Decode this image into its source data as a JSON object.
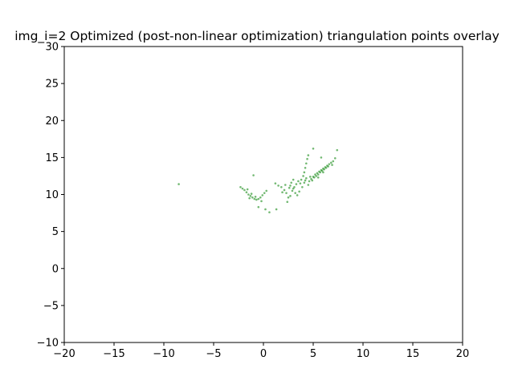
{
  "chart_data": {
    "type": "scatter",
    "title": "img_i=2 Optimized (post-non-linear optimization) triangulation points overlay",
    "xlabel": "",
    "ylabel": "",
    "xlim": [
      -20,
      20
    ],
    "ylim": [
      -10,
      30
    ],
    "xticks": [
      -20,
      -15,
      -10,
      -5,
      0,
      5,
      10,
      15,
      20
    ],
    "yticks": [
      -10,
      -5,
      0,
      5,
      10,
      15,
      20,
      25,
      30
    ],
    "xtick_labels": [
      "−20",
      "−15",
      "−10",
      "−5",
      "0",
      "5",
      "10",
      "15",
      "20"
    ],
    "ytick_labels": [
      "−10",
      "−5",
      "0",
      "5",
      "10",
      "15",
      "20",
      "25",
      "30"
    ],
    "grid": false,
    "legend": "none",
    "point_color": "#008000",
    "series": [
      {
        "points": [
          [
            -8.5,
            11.4
          ],
          [
            -2.3,
            11.0
          ],
          [
            -2.1,
            10.8
          ],
          [
            -1.9,
            10.6
          ],
          [
            -1.7,
            10.3
          ],
          [
            -1.5,
            10.0
          ],
          [
            -1.3,
            9.8
          ],
          [
            -1.1,
            9.6
          ],
          [
            -0.9,
            9.4
          ],
          [
            -0.7,
            9.3
          ],
          [
            -0.5,
            9.4
          ],
          [
            -0.3,
            9.6
          ],
          [
            -0.1,
            9.9
          ],
          [
            0.1,
            10.2
          ],
          [
            0.3,
            10.5
          ],
          [
            -1.2,
            10.1
          ],
          [
            -0.8,
            9.7
          ],
          [
            -1.4,
            9.5
          ],
          [
            -1.0,
            12.6
          ],
          [
            -0.5,
            8.3
          ],
          [
            0.2,
            8.0
          ],
          [
            0.6,
            7.6
          ],
          [
            -0.2,
            9.1
          ],
          [
            -1.6,
            10.7
          ],
          [
            1.2,
            11.5
          ],
          [
            1.5,
            11.2
          ],
          [
            1.3,
            8.0
          ],
          [
            1.8,
            11.0
          ],
          [
            2.1,
            10.6
          ],
          [
            2.3,
            10.2
          ],
          [
            2.5,
            9.6
          ],
          [
            2.4,
            9.0
          ],
          [
            2.7,
            9.8
          ],
          [
            2.9,
            10.5
          ],
          [
            3.1,
            11.0
          ],
          [
            3.3,
            11.4
          ],
          [
            3.5,
            11.8
          ],
          [
            3.7,
            11.5
          ],
          [
            3.9,
            11.0
          ],
          [
            2.6,
            10.9
          ],
          [
            2.8,
            11.6
          ],
          [
            3.0,
            12.0
          ],
          [
            3.2,
            10.2
          ],
          [
            3.4,
            9.9
          ],
          [
            3.6,
            10.4
          ],
          [
            2.2,
            11.3
          ],
          [
            1.9,
            10.3
          ],
          [
            3.0,
            10.8
          ],
          [
            2.7,
            11.2
          ],
          [
            3.8,
            12.0
          ],
          [
            4.0,
            12.5
          ],
          [
            4.1,
            13.0
          ],
          [
            4.2,
            13.6
          ],
          [
            4.3,
            14.2
          ],
          [
            4.4,
            14.8
          ],
          [
            4.5,
            15.3
          ],
          [
            4.1,
            11.6
          ],
          [
            4.3,
            12.2
          ],
          [
            4.5,
            11.3
          ],
          [
            4.2,
            11.9
          ],
          [
            4.6,
            11.8
          ],
          [
            4.8,
            12.1
          ],
          [
            5.0,
            12.4
          ],
          [
            5.2,
            12.7
          ],
          [
            5.4,
            12.9
          ],
          [
            5.6,
            13.1
          ],
          [
            5.8,
            13.3
          ],
          [
            6.0,
            13.5
          ],
          [
            6.2,
            13.7
          ],
          [
            6.4,
            13.9
          ],
          [
            6.6,
            14.1
          ],
          [
            6.8,
            14.3
          ],
          [
            7.0,
            14.5
          ],
          [
            7.2,
            14.9
          ],
          [
            7.4,
            16.0
          ],
          [
            5.1,
            12.3
          ],
          [
            5.3,
            12.5
          ],
          [
            5.5,
            12.7
          ],
          [
            5.7,
            13.0
          ],
          [
            5.9,
            13.2
          ],
          [
            6.1,
            13.4
          ],
          [
            6.3,
            13.6
          ],
          [
            6.5,
            13.8
          ],
          [
            4.9,
            11.9
          ],
          [
            5.5,
            12.3
          ],
          [
            6.0,
            13.0
          ],
          [
            5.0,
            16.2
          ],
          [
            5.8,
            15.0
          ],
          [
            6.9,
            14.0
          ],
          [
            4.7,
            12.4
          ]
        ]
      }
    ]
  }
}
